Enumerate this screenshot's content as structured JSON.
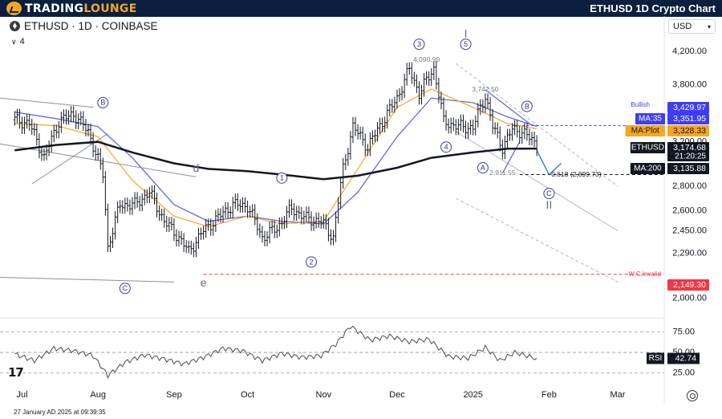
{
  "header": {
    "brand_main": "TRADING",
    "brand_accent": "LOUNGE",
    "brand_suffix": "",
    "page_title": "ETHUSD 1D Crypto Chart"
  },
  "chart_header": {
    "symbol_line": "ETHUSD · 1D · COINBASE",
    "indicator_count": "4",
    "currency": "USD"
  },
  "footer": {
    "timestamp": "27 January AD 2025 at 09:39:35"
  },
  "colors": {
    "price_bars": "#131722",
    "ma35": "#5b5be0",
    "ma_plot": "#f5a623",
    "ma200": "#131722",
    "invalid": "#f23645",
    "label_ma35_bg": "#3d3df5",
    "label_maplot_bg": "#f5a623",
    "label_dark_bg": "#131722"
  },
  "chart_data": [
    {
      "type": "line",
      "x_axis_labels": [
        "Jul",
        "Aug",
        "Sep",
        "Oct",
        "Nov",
        "Dec",
        "2025",
        "Feb",
        "Mar"
      ],
      "price_axis_ticks": [
        "4,200.00",
        "3,800.00",
        "3,200.00",
        "2,800.00",
        "2,600.00",
        "2,450.00",
        "2,290.00",
        "2,000.00"
      ],
      "y_scale": "log",
      "ylim": [
        1890,
        4450
      ],
      "series": [
        {
          "name": "ETHUSD",
          "x": [
            "2024-06-28",
            "2024-07-04",
            "2024-07-10",
            "2024-07-16",
            "2024-07-22",
            "2024-07-28",
            "2024-08-03",
            "2024-08-05",
            "2024-08-10",
            "2024-08-16",
            "2024-08-22",
            "2024-08-28",
            "2024-09-03",
            "2024-09-07",
            "2024-09-13",
            "2024-09-19",
            "2024-09-25",
            "2024-10-01",
            "2024-10-07",
            "2024-10-13",
            "2024-10-19",
            "2024-10-25",
            "2024-10-31",
            "2024-11-05",
            "2024-11-09",
            "2024-11-13",
            "2024-11-19",
            "2024-11-25",
            "2024-12-01",
            "2024-12-06",
            "2024-12-10",
            "2024-12-16",
            "2024-12-20",
            "2024-12-26",
            "2025-01-01",
            "2025-01-06",
            "2025-01-09",
            "2025-01-13",
            "2025-01-17",
            "2025-01-21",
            "2025-01-27"
          ],
          "values": [
            3420,
            3380,
            3050,
            3400,
            3480,
            3300,
            2900,
            2330,
            2650,
            2650,
            2750,
            2520,
            2400,
            2300,
            2450,
            2550,
            2650,
            2640,
            2400,
            2470,
            2620,
            2540,
            2520,
            2400,
            2950,
            3350,
            3150,
            3400,
            3650,
            3980,
            3700,
            3990,
            3400,
            3350,
            3340,
            3680,
            3350,
            3150,
            3320,
            3300,
            3174.68
          ]
        },
        {
          "name": "MA:35",
          "x": [
            "2024-06-28",
            "2024-07-15",
            "2024-08-01",
            "2024-08-15",
            "2024-09-01",
            "2024-09-15",
            "2024-10-01",
            "2024-10-15",
            "2024-11-01",
            "2024-11-15",
            "2024-12-01",
            "2024-12-15",
            "2025-01-01",
            "2025-01-15",
            "2025-01-27"
          ],
          "values": [
            3500,
            3430,
            3350,
            3050,
            2650,
            2520,
            2560,
            2520,
            2500,
            2750,
            3250,
            3650,
            3600,
            3450,
            3351.95
          ]
        },
        {
          "name": "MA:Plot",
          "x": [
            "2024-06-28",
            "2024-07-15",
            "2024-08-01",
            "2024-08-15",
            "2024-09-01",
            "2024-09-15",
            "2024-10-01",
            "2024-10-15",
            "2024-11-01",
            "2024-11-15",
            "2024-12-01",
            "2024-12-15",
            "2025-01-01",
            "2025-01-15",
            "2025-01-27"
          ],
          "values": [
            3380,
            3360,
            3250,
            2850,
            2560,
            2480,
            2560,
            2500,
            2520,
            2950,
            3550,
            3750,
            3550,
            3380,
            3328.33
          ]
        },
        {
          "name": "MA:200",
          "x": [
            "2024-06-28",
            "2024-07-15",
            "2024-08-01",
            "2024-08-15",
            "2024-09-01",
            "2024-09-15",
            "2024-10-01",
            "2024-10-15",
            "2024-11-01",
            "2024-11-15",
            "2024-12-01",
            "2024-12-15",
            "2025-01-01",
            "2025-01-15",
            "2025-01-27"
          ],
          "values": [
            3120,
            3170,
            3200,
            3100,
            3000,
            2950,
            2930,
            2900,
            2860,
            2890,
            2960,
            3050,
            3100,
            3135,
            3135.88
          ]
        }
      ],
      "price_labels": [
        {
          "name": "Bullish",
          "value": 3429.97
        },
        {
          "name": "MA:35",
          "value": 3351.95
        },
        {
          "name": "MA:Plot",
          "value": 3328.33
        },
        {
          "name": "ETHUSD",
          "value": 3174.68,
          "countdown": "21:20:25"
        },
        {
          "name": "MA:200",
          "value": 3135.88
        },
        {
          "name": "W.C.Invalid",
          "value": 2149.3
        }
      ],
      "annotations": [
        {
          "text": "4,090.99",
          "x": "2024-12-13",
          "y": 4090.99
        },
        {
          "text": "3,742.50",
          "x": "2025-01-06",
          "y": 3742.5
        },
        {
          "text": "2,911.55",
          "x": "2025-01-13",
          "y": 2911.55
        },
        {
          "text": "0.618 (2,899.73)",
          "x": "2025-01-29",
          "y": 2899.73
        }
      ],
      "wave_labels": [
        {
          "text": "B",
          "circled": true,
          "x": "2024-08-03",
          "y": 3600
        },
        {
          "text": "d",
          "circled": false,
          "x": "2024-09-10",
          "y": 2950
        },
        {
          "text": "C",
          "circled": true,
          "x": "2024-08-12",
          "y": 2060
        },
        {
          "text": "e",
          "circled": false,
          "x": "2024-09-13",
          "y": 2090
        },
        {
          "text": "1",
          "circled": true,
          "x": "2024-10-15",
          "y": 2870
        },
        {
          "text": "2",
          "circled": true,
          "x": "2024-10-27",
          "y": 2230
        },
        {
          "text": "3",
          "circled": true,
          "x": "2024-12-10",
          "y": 4290
        },
        {
          "text": "4",
          "circled": true,
          "x": "2024-12-21",
          "y": 3150
        },
        {
          "text": "5",
          "circled": true,
          "x": "2024-12-29",
          "y": 4290
        },
        {
          "text": "I",
          "circled": false,
          "x": "2024-12-29",
          "y": 4420
        },
        {
          "text": "A",
          "circled": true,
          "x": "2025-01-05",
          "y": 2960
        },
        {
          "text": "B",
          "circled": true,
          "x": "2025-01-23",
          "y": 3560
        },
        {
          "text": "C",
          "circled": true,
          "x": "2025-02-01",
          "y": 2740
        },
        {
          "text": "II",
          "circled": false,
          "x": "2025-02-01",
          "y": 2640
        }
      ]
    },
    {
      "type": "line",
      "name": "RSI",
      "x_axis_labels": [
        "Jul",
        "Aug",
        "Sep",
        "Oct",
        "Nov",
        "Dec",
        "2025",
        "Feb",
        "Mar"
      ],
      "y_ticks": [
        "75.00",
        "50.00",
        "25.00"
      ],
      "ylim": [
        15,
        90
      ],
      "levels": [
        75,
        50,
        42.74,
        25
      ],
      "series": [
        {
          "name": "RSI",
          "x": [
            "2024-06-28",
            "2024-07-06",
            "2024-07-14",
            "2024-07-22",
            "2024-07-30",
            "2024-08-05",
            "2024-08-12",
            "2024-08-20",
            "2024-08-28",
            "2024-09-05",
            "2024-09-13",
            "2024-09-21",
            "2024-09-29",
            "2024-10-07",
            "2024-10-15",
            "2024-10-23",
            "2024-10-31",
            "2024-11-06",
            "2024-11-12",
            "2024-11-20",
            "2024-11-28",
            "2024-12-06",
            "2024-12-14",
            "2024-12-22",
            "2024-12-30",
            "2025-01-06",
            "2025-01-12",
            "2025-01-18",
            "2025-01-27"
          ],
          "values": [
            48,
            40,
            55,
            52,
            46,
            22,
            38,
            47,
            42,
            36,
            44,
            55,
            52,
            40,
            49,
            44,
            46,
            60,
            82,
            65,
            70,
            63,
            66,
            45,
            43,
            56,
            40,
            50,
            42.74
          ]
        }
      ],
      "value_label": "42.74"
    }
  ]
}
